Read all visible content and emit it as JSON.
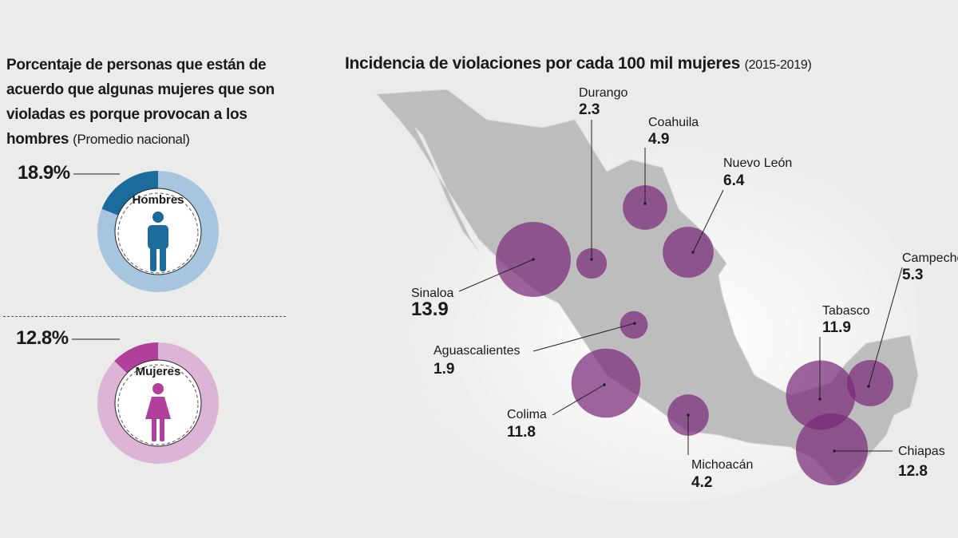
{
  "chart_data": [
    {
      "type": "pie",
      "title": "Porcentaje de personas que están de acuerdo que algunas mujeres que son violadas es porque provocan a los hombres",
      "subtitle": "(Promedio nacional)",
      "series": [
        {
          "name": "Hombres",
          "value": 18.9,
          "label": "18.9%",
          "color": "#1b6b9c",
          "rest_color": "#a8c5df"
        },
        {
          "name": "Mujeres",
          "value": 12.8,
          "label": "12.8%",
          "color": "#b0409b",
          "rest_color": "#dcb4d6"
        }
      ]
    },
    {
      "type": "scatter",
      "title": "Incidencia de violaciones por cada 100 mil mujeres",
      "subtitle": "(2015-2019)",
      "bubble_color": "#7a2a78",
      "points": [
        {
          "state": "Sinaloa",
          "value": 13.9,
          "label": "13.9"
        },
        {
          "state": "Durango",
          "value": 2.3,
          "label": "2.3"
        },
        {
          "state": "Coahuila",
          "value": 4.9,
          "label": "4.9"
        },
        {
          "state": "Nuevo León",
          "value": 6.4,
          "label": "6.4"
        },
        {
          "state": "Aguascalientes",
          "value": 1.9,
          "label": "1.9"
        },
        {
          "state": "Colima",
          "value": 11.8,
          "label": "11.8"
        },
        {
          "state": "Michoacán",
          "value": 4.2,
          "label": "4.2"
        },
        {
          "state": "Tabasco",
          "value": 11.9,
          "label": "11.9"
        },
        {
          "state": "Chiapas",
          "value": 12.8,
          "label": "12.8"
        },
        {
          "state": "Campeche",
          "value": 5.3,
          "label": "5.3"
        }
      ]
    }
  ]
}
